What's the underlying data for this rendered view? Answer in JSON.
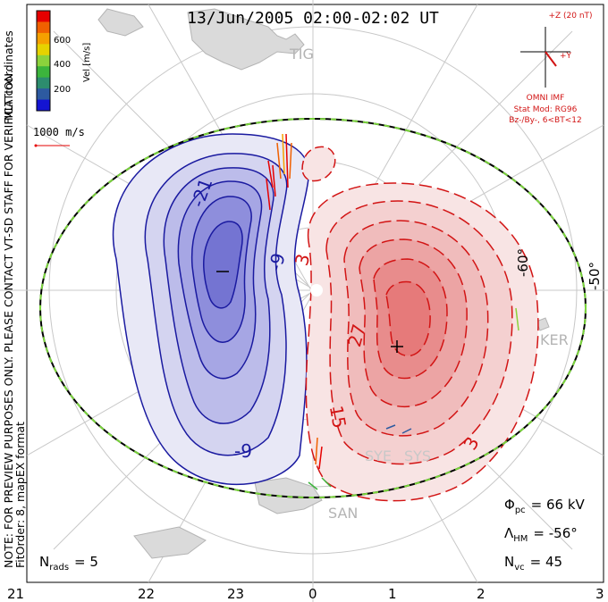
{
  "title": "13/Jun/2005 02:00-02:02 UT",
  "side_note": "NOTE: FOR PREVIEW PURPOSES ONLY. PLEASE CONTACT VT-SD STAFF FOR VERIFICATION.",
  "coords_label": "MLT coordinates",
  "fit_order": "FitOrder: 8, mapEX format",
  "colorbar": {
    "label": "Vel [m/s]",
    "ticks": [
      "600",
      "400",
      "200"
    ],
    "colors": [
      "#e60000",
      "#f06000",
      "#f5a000",
      "#e6d200",
      "#8cd23c",
      "#3cb43c",
      "#2d8c6e",
      "#2d5aa0",
      "#1414d2"
    ]
  },
  "scale_vector_label": "1000 m/s",
  "imf": {
    "z_label": "+Z (20 nT)",
    "y_label": "+Y",
    "source": "OMNI IMF",
    "stat_mod": "Stat Mod: RG96",
    "condition": "Bz-/By-, 6<BT<12"
  },
  "lat_labels": [
    "-60°",
    "-50°"
  ],
  "mlt_labels": [
    "21",
    "22",
    "23",
    "0",
    "1",
    "2",
    "3"
  ],
  "stations": [
    "TIG",
    "KER",
    "SYE",
    "SYS",
    "SAN"
  ],
  "contour_labels_neg": [
    "-21",
    "-9",
    "-9"
  ],
  "contour_labels_pos": [
    "3",
    "27",
    "15",
    "3"
  ],
  "phi_pc_sym": "Φ",
  "phi_pc_sub": "pc",
  "phi_pc_value": "= 66 kV",
  "lambda_hm_sym": "Λ",
  "lambda_hm_sub": "HM",
  "lambda_hm_value": "= -56°",
  "n_vc_sym": "N",
  "n_vc_sub": "vc",
  "n_vc_value": "= 45",
  "n_rads_sym": "N",
  "n_rads_sub": "rads",
  "n_rads_value": "= 5",
  "colors": {
    "neg_cell": "#1a1aa0",
    "pos_cell": "#d21414",
    "boundary": "#7ad43c",
    "grid": "#c8c8c8",
    "land": "#d2d2d2"
  }
}
